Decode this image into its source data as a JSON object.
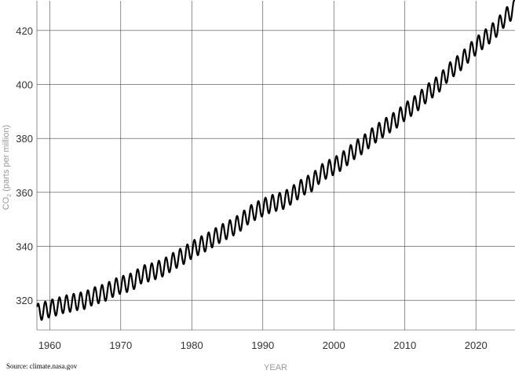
{
  "chart_data": {
    "type": "line",
    "xlabel": "YEAR",
    "ylabel_main": "CO",
    "ylabel_sub": "2",
    "ylabel_rest": " (parts per million)",
    "xlim": [
      1958.2,
      2025.5
    ],
    "ylim": [
      309,
      431
    ],
    "x_ticks": [
      1960,
      1970,
      1980,
      1990,
      2000,
      2010,
      2020
    ],
    "x_tick_labels": [
      "1960",
      "1970",
      "1980",
      "1990",
      "2000",
      "2010",
      "2020"
    ],
    "y_ticks": [
      320,
      340,
      360,
      380,
      400,
      420
    ],
    "y_tick_labels": [
      "320",
      "340",
      "360",
      "380",
      "400",
      "420"
    ],
    "grid": true,
    "line_color": "#000000",
    "series": [
      {
        "x": [
          1958.25,
          1959,
          1960,
          1961,
          1962,
          1963,
          1964,
          1965,
          1966,
          1967,
          1968,
          1969,
          1970,
          1971,
          1972,
          1973,
          1974,
          1975,
          1976,
          1977,
          1978,
          1979,
          1980,
          1981,
          1982,
          1983,
          1984,
          1985,
          1986,
          1987,
          1988,
          1989,
          1990,
          1991,
          1992,
          1993,
          1994,
          1995,
          1996,
          1997,
          1998,
          1999,
          2000,
          2001,
          2002,
          2003,
          2004,
          2005,
          2006,
          2007,
          2008,
          2009,
          2010,
          2011,
          2012,
          2013,
          2014,
          2015,
          2016,
          2017,
          2018,
          2019,
          2020,
          2021,
          2022,
          2023,
          2024,
          2025.4
        ],
        "trend": [
          315.5,
          316.0,
          316.9,
          317.6,
          318.5,
          319.0,
          319.6,
          320.0,
          321.4,
          322.2,
          323.1,
          324.6,
          325.7,
          326.3,
          327.5,
          329.7,
          330.2,
          331.1,
          332.1,
          333.8,
          335.4,
          336.8,
          338.7,
          340.1,
          341.4,
          343.0,
          344.6,
          346.0,
          347.4,
          349.2,
          351.6,
          353.1,
          354.4,
          355.6,
          356.4,
          357.1,
          358.8,
          360.8,
          362.6,
          363.7,
          366.7,
          368.4,
          369.7,
          371.3,
          373.5,
          375.8,
          377.5,
          379.8,
          381.9,
          383.8,
          385.6,
          387.4,
          389.9,
          391.7,
          393.9,
          396.5,
          398.6,
          400.8,
          404.2,
          406.5,
          408.7,
          411.6,
          414.2,
          416.5,
          418.6,
          421.1,
          424.6,
          428.0
        ],
        "seasonal_amplitude": 3.2
      }
    ],
    "source": "Source: climate.nasa.gov"
  }
}
